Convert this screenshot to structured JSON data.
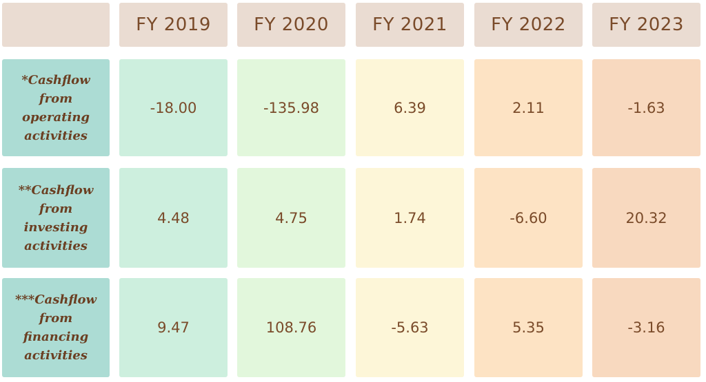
{
  "chart_data": {
    "type": "table",
    "columns": [
      "FY 2019",
      "FY 2020",
      "FY 2021",
      "FY 2022",
      "FY 2023"
    ],
    "rows": [
      {
        "label": "*Cashflow from operating activities",
        "label_lines": [
          "*Cashflow",
          "from",
          "operating",
          "activities"
        ],
        "values": [
          "-18.00",
          "-135.98",
          "6.39",
          "2.11",
          "-1.63"
        ]
      },
      {
        "label": "**Cashflow from investing activities",
        "label_lines": [
          "**Cashflow",
          "from",
          "investing",
          "activities"
        ],
        "values": [
          "4.48",
          "4.75",
          "1.74",
          "-6.60",
          "20.32"
        ]
      },
      {
        "label": "***Cashflow from financing activities",
        "label_lines": [
          "***Cashflow",
          "from",
          "financing",
          "activities"
        ],
        "values": [
          "9.47",
          "108.76",
          "-5.63",
          "5.35",
          "-3.16"
        ]
      }
    ],
    "column_colors": [
      "#cdefde",
      "#e2f7dc",
      "#fdf6d8",
      "#fde3c4",
      "#f8d9bf"
    ],
    "label_color": "#acdcd4",
    "header_color": "#eadcd2",
    "text_color": "#7a4b2a"
  }
}
